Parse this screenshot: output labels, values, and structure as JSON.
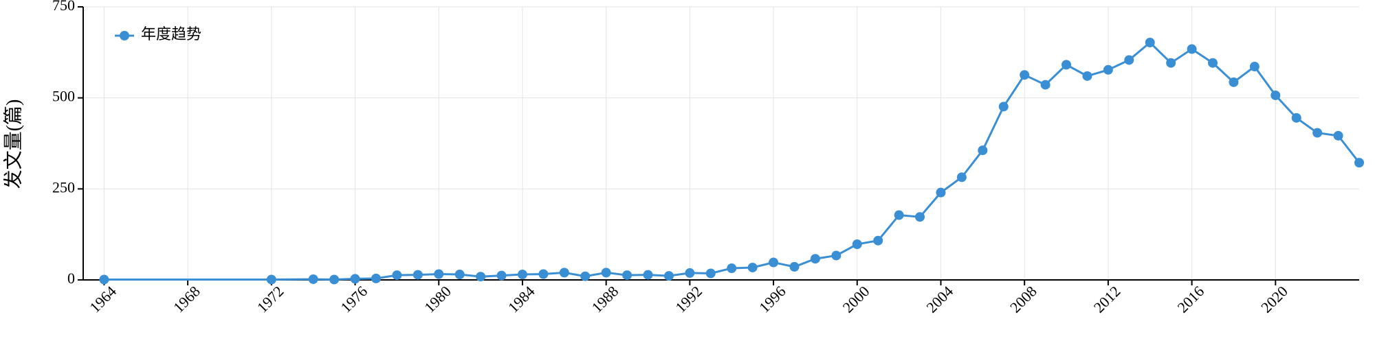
{
  "chart_data": {
    "type": "line",
    "y_label": "发文量(篇)",
    "x": [
      1964,
      1972,
      1974,
      1975,
      1976,
      1977,
      1978,
      1979,
      1980,
      1981,
      1982,
      1983,
      1984,
      1985,
      1986,
      1987,
      1988,
      1989,
      1990,
      1991,
      1992,
      1993,
      1994,
      1995,
      1996,
      1997,
      1998,
      1999,
      2000,
      2001,
      2002,
      2003,
      2004,
      2005,
      2006,
      2007,
      2008,
      2009,
      2010,
      2011,
      2012,
      2013,
      2014,
      2015,
      2016,
      2017,
      2018,
      2019,
      2020,
      2021,
      2022,
      2023,
      2024
    ],
    "series": [
      {
        "name": "年度趋势",
        "color": "#3a8fd4",
        "values": [
          1,
          1,
          2,
          1,
          3,
          4,
          13,
          14,
          16,
          15,
          9,
          12,
          15,
          16,
          20,
          10,
          20,
          13,
          14,
          11,
          19,
          18,
          32,
          34,
          48,
          36,
          58,
          67,
          98,
          108,
          178,
          173,
          240,
          282,
          356,
          476,
          563,
          536,
          591,
          560,
          577,
          604,
          652,
          596,
          634,
          596,
          543,
          586,
          507,
          445,
          404,
          396,
          322
        ]
      }
    ],
    "xlim": [
      1963,
      2024
    ],
    "xticks": [
      1964,
      1968,
      1972,
      1976,
      1980,
      1984,
      1988,
      1992,
      1996,
      2000,
      2004,
      2008,
      2012,
      2016,
      2020
    ],
    "ylim": [
      0,
      750
    ],
    "yticks": [
      0,
      250,
      500,
      750
    ],
    "grid": true,
    "legend": "top-left"
  }
}
